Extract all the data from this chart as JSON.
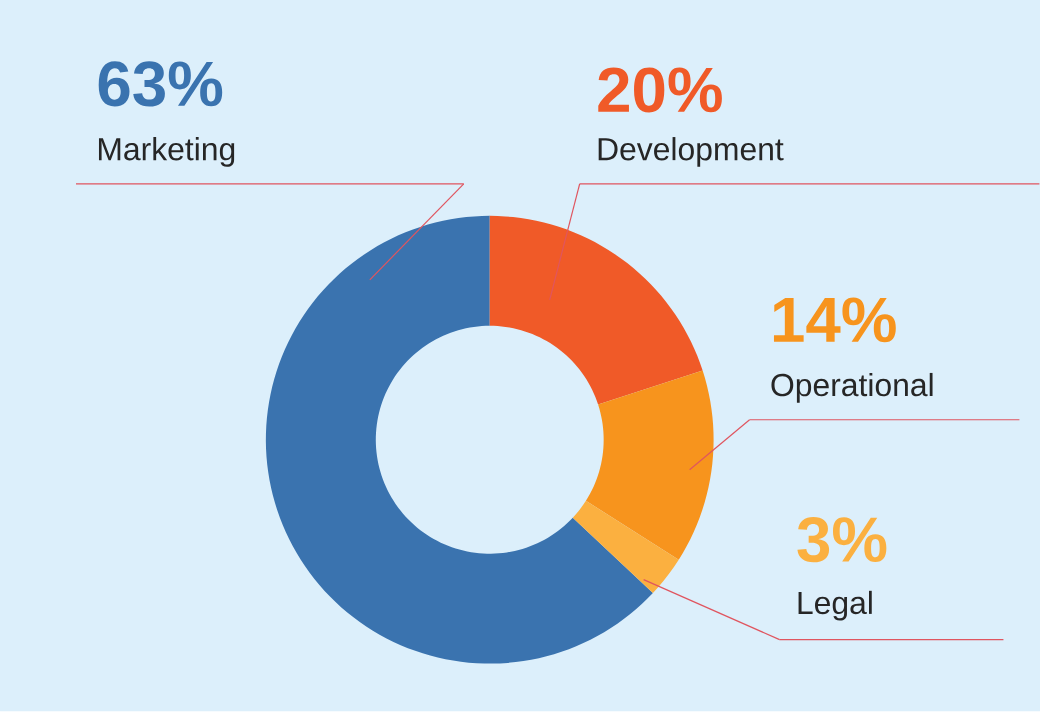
{
  "chart_data": {
    "type": "donut",
    "categories": [
      "Marketing",
      "Development",
      "Operational",
      "Legal"
    ],
    "values": [
      63,
      20,
      14,
      3
    ],
    "colors": [
      "#3a73af",
      "#f05a28",
      "#f7941d",
      "#fbb040"
    ],
    "value_labels": [
      "63%",
      "20%",
      "14%",
      "3%"
    ]
  }
}
